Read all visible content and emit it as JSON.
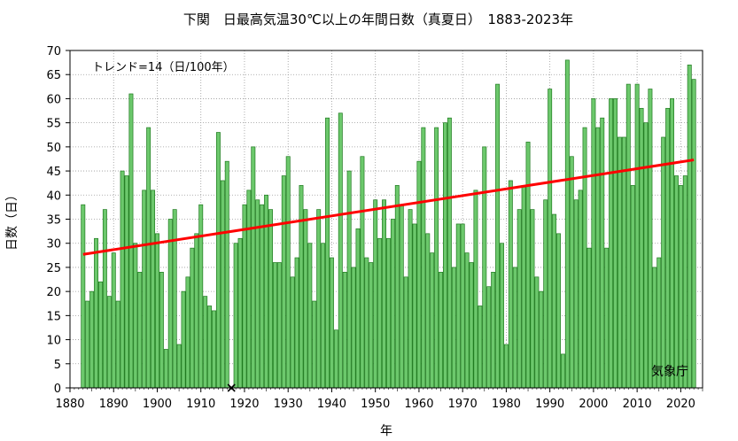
{
  "chart_data": {
    "type": "bar",
    "title": "下関　日最高気温30℃以上の年間日数（真夏日）　1883-2023年",
    "xlabel": "年",
    "ylabel": "日数（日）",
    "trend_label": "トレンド=14（日/100年）",
    "source_label": "気象庁",
    "xlim": [
      1880,
      2025
    ],
    "ylim": [
      0,
      70
    ],
    "x_ticks": [
      "1880",
      "1890",
      "1900",
      "1910",
      "1920",
      "1930",
      "1940",
      "1950",
      "1960",
      "1970",
      "1980",
      "1990",
      "2000",
      "2010",
      "2020"
    ],
    "y_ticks": [
      "0",
      "5",
      "10",
      "15",
      "20",
      "25",
      "30",
      "35",
      "40",
      "45",
      "50",
      "55",
      "60",
      "65",
      "70"
    ],
    "grid": true,
    "colors": {
      "bar_fill": "#6cc86c",
      "bar_stroke": "#1f7a1f",
      "trend": "#ff0000",
      "grid": "#999999"
    },
    "years": [
      1883,
      1884,
      1885,
      1886,
      1887,
      1888,
      1889,
      1890,
      1891,
      1892,
      1893,
      1894,
      1895,
      1896,
      1897,
      1898,
      1899,
      1900,
      1901,
      1902,
      1903,
      1904,
      1905,
      1906,
      1907,
      1908,
      1909,
      1910,
      1911,
      1912,
      1913,
      1914,
      1915,
      1916,
      1917,
      1918,
      1919,
      1920,
      1921,
      1922,
      1923,
      1924,
      1925,
      1926,
      1927,
      1928,
      1929,
      1930,
      1931,
      1932,
      1933,
      1934,
      1935,
      1936,
      1937,
      1938,
      1939,
      1940,
      1941,
      1942,
      1943,
      1944,
      1945,
      1946,
      1947,
      1948,
      1949,
      1950,
      1951,
      1952,
      1953,
      1954,
      1955,
      1956,
      1957,
      1958,
      1959,
      1960,
      1961,
      1962,
      1963,
      1964,
      1965,
      1966,
      1967,
      1968,
      1969,
      1970,
      1971,
      1972,
      1973,
      1974,
      1975,
      1976,
      1977,
      1978,
      1979,
      1980,
      1981,
      1982,
      1983,
      1984,
      1985,
      1986,
      1987,
      1988,
      1989,
      1990,
      1991,
      1992,
      1993,
      1994,
      1995,
      1996,
      1997,
      1998,
      1999,
      2000,
      2001,
      2002,
      2003,
      2004,
      2005,
      2006,
      2007,
      2008,
      2009,
      2010,
      2011,
      2012,
      2013,
      2014,
      2015,
      2016,
      2017,
      2018,
      2019,
      2020,
      2021,
      2022,
      2023
    ],
    "values": [
      38,
      18,
      20,
      31,
      22,
      37,
      19,
      28,
      18,
      45,
      44,
      61,
      30,
      24,
      41,
      54,
      41,
      32,
      24,
      8,
      35,
      37,
      9,
      20,
      23,
      29,
      32,
      38,
      19,
      17,
      16,
      53,
      43,
      47,
      0,
      30,
      31,
      38,
      41,
      50,
      39,
      38,
      40,
      37,
      26,
      26,
      44,
      48,
      23,
      27,
      42,
      37,
      30,
      18,
      37,
      30,
      56,
      27,
      12,
      57,
      24,
      45,
      25,
      33,
      48,
      27,
      26,
      39,
      31,
      39,
      31,
      35,
      42,
      38,
      23,
      37,
      34,
      47,
      54,
      32,
      28,
      54,
      24,
      55,
      56,
      25,
      34,
      34,
      28,
      26,
      41,
      17,
      50,
      21,
      24,
      63,
      30,
      9,
      43,
      25,
      37,
      42,
      51,
      37,
      23,
      20,
      39,
      62,
      36,
      32,
      7,
      68,
      48,
      39,
      41,
      54,
      29,
      60,
      54,
      56,
      29,
      60,
      60,
      52,
      52,
      63,
      42,
      63,
      58,
      55,
      62,
      25,
      27,
      52,
      58,
      60,
      44,
      42,
      44,
      67,
      64
    ],
    "missing": [
      1917
    ],
    "trend": {
      "x": [
        1883,
        2023
      ],
      "y": [
        27.7,
        47.3
      ]
    }
  }
}
